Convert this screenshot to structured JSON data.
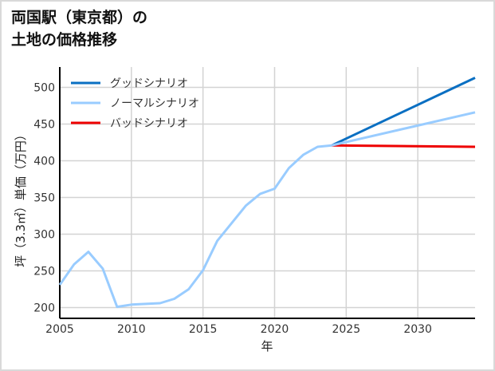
{
  "title": "両国駅（東京都）の\n土地の価格推移",
  "chart_data": {
    "type": "line",
    "title": "両国駅（東京都）の土地の価格推移",
    "xlabel": "年",
    "ylabel": "坪（3.3㎡）単価（万円）",
    "xlim": [
      2005,
      2034
    ],
    "ylim": [
      185,
      530
    ],
    "x_ticks": [
      2005,
      2010,
      2015,
      2020,
      2025,
      2030
    ],
    "y_ticks": [
      200,
      250,
      300,
      350,
      400,
      450,
      500
    ],
    "grid": true,
    "legend_position": "upper left",
    "historical": {
      "x": [
        2005,
        2006,
        2007,
        2008,
        2009,
        2010,
        2011,
        2012,
        2013,
        2014,
        2015,
        2016,
        2017,
        2018,
        2019,
        2020,
        2021,
        2022,
        2023,
        2024
      ],
      "values": [
        231,
        259,
        276,
        253,
        201,
        204,
        205,
        206,
        212,
        225,
        251,
        291,
        315,
        339,
        355,
        362,
        390,
        408,
        419,
        421
      ]
    },
    "series": [
      {
        "name": "グッドシナリオ",
        "color": "#0a6fc2",
        "x": [
          2024,
          2034
        ],
        "values": [
          421,
          513
        ]
      },
      {
        "name": "ノーマルシナリオ",
        "color": "#99ccff",
        "x": [
          2024,
          2034
        ],
        "values": [
          421,
          466
        ]
      },
      {
        "name": "バッドシナリオ",
        "color": "#ee0000",
        "x": [
          2024,
          2034
        ],
        "values": [
          421,
          419
        ]
      }
    ]
  }
}
